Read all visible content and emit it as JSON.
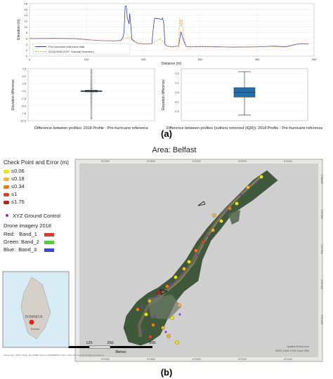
{
  "panel_a_label": "(a)",
  "panel_b_label": "(b)",
  "chart_data": [
    {
      "type": "line",
      "xlabel": "Distance (m)",
      "ylabel": "Elevation (m)",
      "xlim": [
        0,
        500
      ],
      "ylim": [
        0,
        18
      ],
      "x_ticks": [
        "0",
        "100",
        "200",
        "300",
        "400",
        "500"
      ],
      "y_ticks": [
        "0",
        "2",
        "4",
        "6",
        "8",
        "10",
        "12",
        "14",
        "16",
        "18"
      ],
      "legend": [
        "Pre-hurricane reference data",
        "2018 DSM (GCP, Gradual Selection)"
      ],
      "legend_position": "bottom-left",
      "series": [
        {
          "name": "Pre-hurricane reference data",
          "color": "#2c3fbd",
          "dash": false,
          "x": [
            0,
            40,
            80,
            110,
            130,
            150,
            160,
            164,
            166,
            168,
            170,
            172,
            175,
            176,
            178,
            180,
            185,
            190,
            200,
            215,
            218,
            220,
            226,
            232,
            234,
            236,
            238,
            242,
            250,
            262,
            266,
            270,
            275,
            285,
            300,
            330,
            360,
            400,
            430,
            450,
            470,
            480,
            490
          ],
          "y": [
            6.0,
            6.1,
            6.0,
            5.5,
            5.3,
            5.2,
            5.4,
            6.3,
            8.0,
            17.0,
            17.2,
            13.0,
            11.0,
            14.6,
            10.5,
            5.8,
            5.0,
            4.4,
            4.2,
            4.3,
            10.5,
            13.0,
            12.8,
            12.6,
            13.0,
            11.0,
            4.0,
            3.4,
            3.2,
            3.4,
            8.3,
            5.8,
            3.3,
            3.2,
            3.3,
            3.2,
            3.1,
            3.2,
            3.4,
            3.2,
            4.1,
            4.3,
            4.2
          ]
        },
        {
          "name": "2018 DSM (GCP, Gradual Selection)",
          "color": "#f0a02d",
          "dash": true,
          "x": [
            0,
            40,
            80,
            110,
            130,
            150,
            160,
            166,
            170,
            176,
            180,
            185,
            190,
            200,
            215,
            220,
            226,
            230,
            234,
            238,
            242,
            250,
            262,
            264,
            266,
            268,
            270,
            275,
            285,
            300,
            330,
            360,
            400,
            430,
            450,
            470,
            480,
            490
          ],
          "y": [
            5.9,
            6.0,
            5.9,
            5.5,
            5.3,
            5.2,
            5.3,
            5.8,
            6.2,
            6.5,
            5.5,
            4.9,
            4.4,
            4.2,
            4.3,
            4.8,
            5.5,
            6.0,
            5.0,
            3.9,
            3.4,
            3.2,
            3.4,
            13.0,
            10.0,
            12.5,
            8.0,
            3.3,
            3.2,
            3.3,
            3.1,
            3.2,
            3.2,
            3.3,
            3.1,
            4.0,
            4.2,
            4.1
          ]
        }
      ]
    },
    {
      "type": "box",
      "ylabel": "Elevation difference",
      "xlabel": "Difference between profiles: 2018 Profile - Pre-hurricane reference",
      "ylim": [
        -10.0,
        7.5
      ],
      "y_ticks": [
        "7.5",
        "5.0",
        "2.5",
        "0.0",
        "-2.5",
        "-5.0",
        "-7.5",
        "-10.0"
      ],
      "box": {
        "q1": -0.1,
        "median": 0.0,
        "q3": 0.1,
        "whisker_low": -0.3,
        "whisker_high": 0.3
      },
      "outliers": [
        7.1,
        6.5,
        5.9,
        5.2,
        4.6,
        4.0,
        3.4,
        2.9,
        2.4,
        2.0,
        1.6,
        1.2,
        0.8,
        0.6,
        -0.6,
        -0.9,
        -1.3,
        -1.7,
        -2.2,
        -2.7,
        -3.2,
        -3.7,
        -4.2,
        -4.8,
        -5.4,
        -6.0,
        -6.7,
        -7.4,
        -8.1,
        -8.8,
        -9.3
      ]
    },
    {
      "type": "box",
      "ylabel": "Elevation difference",
      "xlabel": "Difference between profiles (outliers removed (IQR)): 2018 Profile - Pre-hurricane reference",
      "ylim": [
        -0.3,
        0.25
      ],
      "y_ticks": [
        "0.2",
        "0.1",
        "0.0",
        "-0.1",
        "-0.2"
      ],
      "box": {
        "q1": -0.05,
        "median": 0.0,
        "q3": 0.05,
        "whisker_low": -0.24,
        "whisker_high": 0.22
      },
      "color": "#2171a8"
    }
  ],
  "map": {
    "title": "Area: Belfast",
    "legend_title": "Check Point and Error (m)",
    "error_classes": [
      {
        "label": "≤0.06",
        "color": "#f2e600"
      },
      {
        "label": "≤0.18",
        "color": "#f3b330"
      },
      {
        "label": "≤0.34",
        "color": "#ee7a16"
      },
      {
        "label": "≤1",
        "color": "#e2421b"
      },
      {
        "label": "≤1.75",
        "color": "#c51b12"
      }
    ],
    "gcp_label": "XYZ Ground Control",
    "gcp_color": "#8b2fbf",
    "imagery_title": "Drone imagery 2018",
    "bands": [
      {
        "label": "Red:   Band_1",
        "color": "#e03b2b"
      },
      {
        "label": "Green: Band_2",
        "color": "#4cd13a"
      },
      {
        "label": "Blue:  Band_3",
        "color": "#3a47d1"
      }
    ],
    "inset_label_country": "DOMINICA",
    "inset_label_city": "Roseau",
    "scale_ticks": [
      "0",
      "125",
      "250",
      "500"
    ],
    "scale_unit": "Metres",
    "top_ticks": [
      "671600",
      "671800",
      "672000",
      "672200",
      "672400"
    ],
    "right_ticks": [
      "1708000",
      "1707800",
      "1707600",
      "1707400",
      "1707200"
    ],
    "crs_text": "Spatial Reference\nWGS 1984 UTM Zone 20N",
    "source_text": "Source: Esri, USGS, NOAA, Esri, HERE, Garmin, INCREMENT P, NGA, USGS, Esri Community Maps Contributors"
  }
}
